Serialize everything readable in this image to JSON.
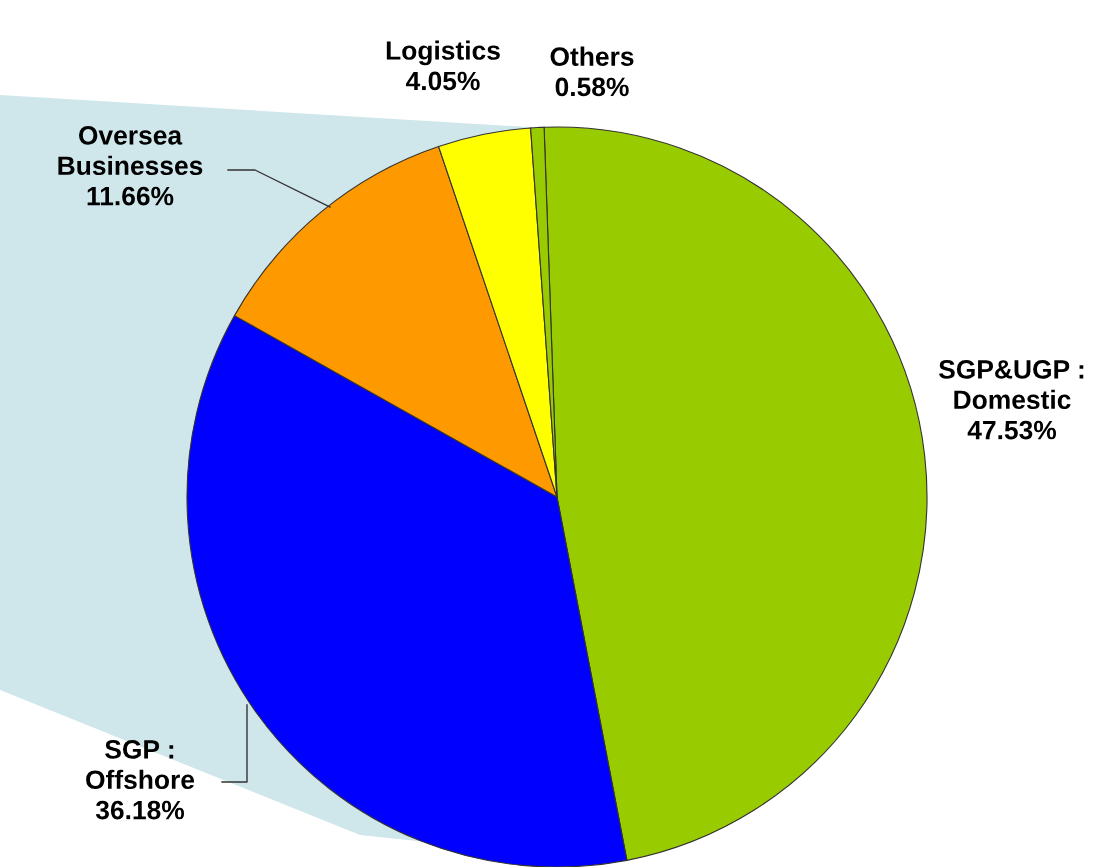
{
  "chart_data": {
    "type": "pie",
    "categories": [
      "SGP&UGP :\nDomestic",
      "SGP :\nOffshore",
      "Oversea\nBusinesses",
      "Logistics",
      "Others"
    ],
    "values": [
      47.53,
      36.18,
      11.66,
      4.05,
      0.58
    ],
    "colors": [
      "#99cc00",
      "#0000ff",
      "#ff9900",
      "#ffff00",
      "#99cc00"
    ],
    "value_labels": [
      "47.53%",
      "36.18%",
      "11.66%",
      "4.05%",
      "0.58%"
    ],
    "legend": false
  }
}
